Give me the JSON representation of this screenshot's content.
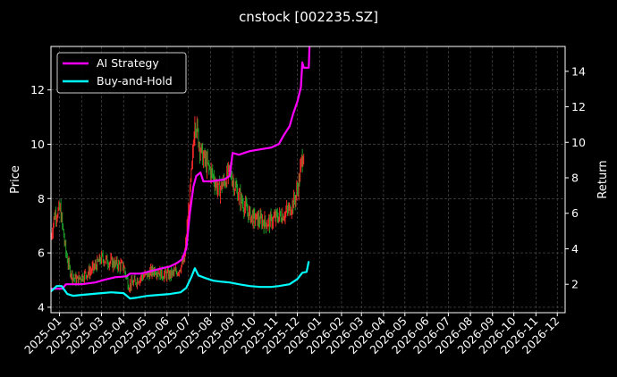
{
  "chart_data": {
    "type": "line",
    "title": "cnstock [002235.SZ]",
    "ylabel_left": "Price",
    "ylabel_right": "Return",
    "ylim_left": [
      3.8,
      13.6
    ],
    "ylim_right": [
      0.4,
      15.4
    ],
    "yticks_left": [
      "4",
      "6",
      "8",
      "10",
      "12"
    ],
    "yticks_right": [
      "2",
      "4",
      "6",
      "8",
      "10",
      "12",
      "14"
    ],
    "xlim": [
      "2024-12-20",
      "2026-12-12"
    ],
    "xticks": [
      "2025-01",
      "2025-02",
      "2025-03",
      "2025-04",
      "2025-05",
      "2025-06",
      "2025-07",
      "2025-08",
      "2025-09",
      "2025-10",
      "2025-11",
      "2025-12",
      "2026-01",
      "2026-02",
      "2026-03",
      "2026-04",
      "2026-05",
      "2026-06",
      "2026-07",
      "2026-08",
      "2026-09",
      "2026-10",
      "2026-11",
      "2026-12"
    ],
    "grid": true,
    "legend": {
      "placement": "top-left",
      "entries": [
        "AI Strategy",
        "Buy-and-Hold"
      ]
    },
    "colors": {
      "ai": "#ff00ff",
      "bh": "#00ffff",
      "up": "#ff2a2a",
      "down": "#1faa2a"
    },
    "price_close": [
      [
        "2024-12-20",
        6.6
      ],
      [
        "2024-12-25",
        7.4
      ],
      [
        "2025-01-02",
        7.6
      ],
      [
        "2025-01-06",
        6.8
      ],
      [
        "2025-01-10",
        6.0
      ],
      [
        "2025-01-15",
        5.4
      ],
      [
        "2025-01-20",
        5.1
      ],
      [
        "2025-01-25",
        5.0
      ],
      [
        "2025-02-05",
        5.2
      ],
      [
        "2025-02-12",
        5.3
      ],
      [
        "2025-02-20",
        5.5
      ],
      [
        "2025-03-01",
        5.8
      ],
      [
        "2025-03-10",
        5.7
      ],
      [
        "2025-03-20",
        5.6
      ],
      [
        "2025-04-01",
        5.5
      ],
      [
        "2025-04-08",
        4.8
      ],
      [
        "2025-04-15",
        4.9
      ],
      [
        "2025-04-25",
        5.1
      ],
      [
        "2025-05-05",
        5.2
      ],
      [
        "2025-05-15",
        5.4
      ],
      [
        "2025-05-25",
        5.2
      ],
      [
        "2025-06-05",
        5.2
      ],
      [
        "2025-06-15",
        5.3
      ],
      [
        "2025-06-25",
        5.7
      ],
      [
        "2025-07-01",
        7.5
      ],
      [
        "2025-07-07",
        9.5
      ],
      [
        "2025-07-10",
        11.0
      ],
      [
        "2025-07-15",
        10.2
      ],
      [
        "2025-07-20",
        9.6
      ],
      [
        "2025-07-28",
        9.2
      ],
      [
        "2025-08-05",
        8.8
      ],
      [
        "2025-08-12",
        8.3
      ],
      [
        "2025-08-20",
        8.6
      ],
      [
        "2025-08-28",
        9.0
      ],
      [
        "2025-09-05",
        8.4
      ],
      [
        "2025-09-12",
        8.0
      ],
      [
        "2025-09-20",
        7.6
      ],
      [
        "2025-09-28",
        7.3
      ],
      [
        "2025-10-10",
        7.2
      ],
      [
        "2025-10-20",
        7.1
      ],
      [
        "2025-11-01",
        7.3
      ],
      [
        "2025-11-10",
        7.4
      ],
      [
        "2025-11-20",
        7.6
      ],
      [
        "2025-11-28",
        8.0
      ],
      [
        "2025-12-03",
        8.6
      ],
      [
        "2025-12-07",
        9.4
      ],
      [
        "2025-12-10",
        9.8
      ]
    ],
    "series": [
      {
        "name": "AI Strategy",
        "points": [
          [
            "2024-12-20",
            1.75
          ],
          [
            "2025-01-05",
            1.75
          ],
          [
            "2025-01-10",
            2.0
          ],
          [
            "2025-02-01",
            2.0
          ],
          [
            "2025-02-20",
            2.1
          ],
          [
            "2025-03-05",
            2.25
          ],
          [
            "2025-03-20",
            2.4
          ],
          [
            "2025-04-05",
            2.45
          ],
          [
            "2025-04-10",
            2.6
          ],
          [
            "2025-04-25",
            2.6
          ],
          [
            "2025-05-05",
            2.7
          ],
          [
            "2025-05-15",
            2.8
          ],
          [
            "2025-05-25",
            2.9
          ],
          [
            "2025-06-05",
            3.0
          ],
          [
            "2025-06-15",
            3.2
          ],
          [
            "2025-06-22",
            3.4
          ],
          [
            "2025-06-28",
            4.0
          ],
          [
            "2025-07-03",
            6.0
          ],
          [
            "2025-07-08",
            7.5
          ],
          [
            "2025-07-12",
            8.1
          ],
          [
            "2025-07-18",
            8.3
          ],
          [
            "2025-07-22",
            7.8
          ],
          [
            "2025-08-01",
            7.8
          ],
          [
            "2025-08-20",
            7.9
          ],
          [
            "2025-08-28",
            8.1
          ],
          [
            "2025-09-01",
            9.4
          ],
          [
            "2025-09-10",
            9.3
          ],
          [
            "2025-09-25",
            9.5
          ],
          [
            "2025-10-10",
            9.6
          ],
          [
            "2025-10-25",
            9.7
          ],
          [
            "2025-11-05",
            9.9
          ],
          [
            "2025-11-12",
            10.4
          ],
          [
            "2025-11-20",
            10.9
          ],
          [
            "2025-11-25",
            11.6
          ],
          [
            "2025-12-01",
            12.3
          ],
          [
            "2025-12-06",
            13.1
          ],
          [
            "2025-12-08",
            14.5
          ],
          [
            "2025-12-10",
            14.2
          ],
          [
            "2025-12-17",
            14.2
          ],
          [
            "2025-12-18",
            15.4
          ]
        ]
      },
      {
        "name": "Buy-and-Hold",
        "points": [
          [
            "2024-12-20",
            1.6
          ],
          [
            "2024-12-28",
            1.9
          ],
          [
            "2025-01-04",
            1.9
          ],
          [
            "2025-01-12",
            1.45
          ],
          [
            "2025-01-20",
            1.35
          ],
          [
            "2025-02-01",
            1.4
          ],
          [
            "2025-02-15",
            1.45
          ],
          [
            "2025-03-01",
            1.5
          ],
          [
            "2025-03-15",
            1.55
          ],
          [
            "2025-04-01",
            1.5
          ],
          [
            "2025-04-10",
            1.2
          ],
          [
            "2025-04-20",
            1.25
          ],
          [
            "2025-05-05",
            1.35
          ],
          [
            "2025-05-20",
            1.4
          ],
          [
            "2025-06-05",
            1.45
          ],
          [
            "2025-06-20",
            1.55
          ],
          [
            "2025-06-28",
            1.8
          ],
          [
            "2025-07-05",
            2.4
          ],
          [
            "2025-07-10",
            2.9
          ],
          [
            "2025-07-15",
            2.5
          ],
          [
            "2025-07-25",
            2.35
          ],
          [
            "2025-08-05",
            2.2
          ],
          [
            "2025-08-15",
            2.15
          ],
          [
            "2025-08-28",
            2.1
          ],
          [
            "2025-09-10",
            2.0
          ],
          [
            "2025-09-25",
            1.9
          ],
          [
            "2025-10-10",
            1.85
          ],
          [
            "2025-10-25",
            1.85
          ],
          [
            "2025-11-05",
            1.9
          ],
          [
            "2025-11-20",
            2.0
          ],
          [
            "2025-12-01",
            2.3
          ],
          [
            "2025-12-08",
            2.65
          ],
          [
            "2025-12-14",
            2.7
          ],
          [
            "2025-12-17",
            3.3
          ]
        ]
      }
    ]
  }
}
